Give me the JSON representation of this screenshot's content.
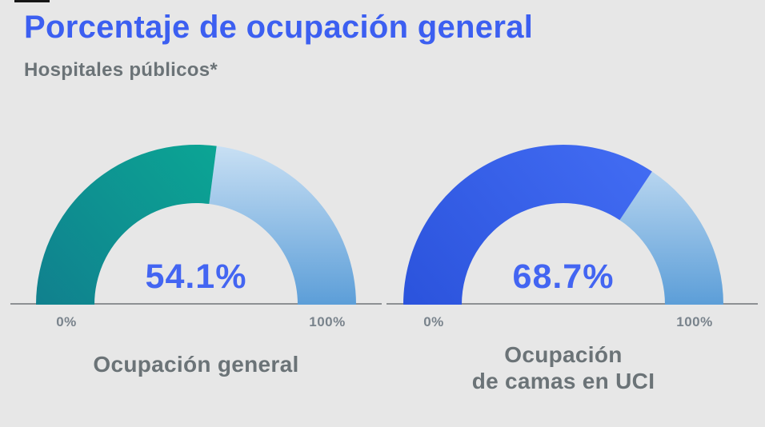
{
  "header": {
    "title": "Porcentaje de ocupación general",
    "subtitle": "Hospitales públicos*"
  },
  "colors": {
    "background": "#E7E7E7",
    "title_blue": "#3C5FF1",
    "value_blue": "#4365F2",
    "text_gray": "#6B7377",
    "tick_gray": "#79838C",
    "baseline_gray": "#8D9093"
  },
  "chart_data": [
    {
      "type": "gauge",
      "title": "Ocupación general",
      "title_lines": [
        "Ocupación general"
      ],
      "value": 54.1,
      "value_display": "54.1%",
      "range": [
        0,
        100
      ],
      "min_label": "0%",
      "max_label": "100%",
      "fill_gradient": [
        "#10808E",
        "#0BAA95"
      ],
      "rest_gradient": [
        "#C9E0F4",
        "#5C9ED8"
      ]
    },
    {
      "type": "gauge",
      "title": "Ocupación de camas en UCI",
      "title_lines": [
        "Ocupación",
        "de camas en UCI"
      ],
      "value": 68.7,
      "value_display": "68.7%",
      "range": [
        0,
        100
      ],
      "min_label": "0%",
      "max_label": "100%",
      "fill_gradient": [
        "#2B53DC",
        "#416BF2"
      ],
      "rest_gradient": [
        "#C9E0F4",
        "#5C9ED8"
      ]
    }
  ]
}
